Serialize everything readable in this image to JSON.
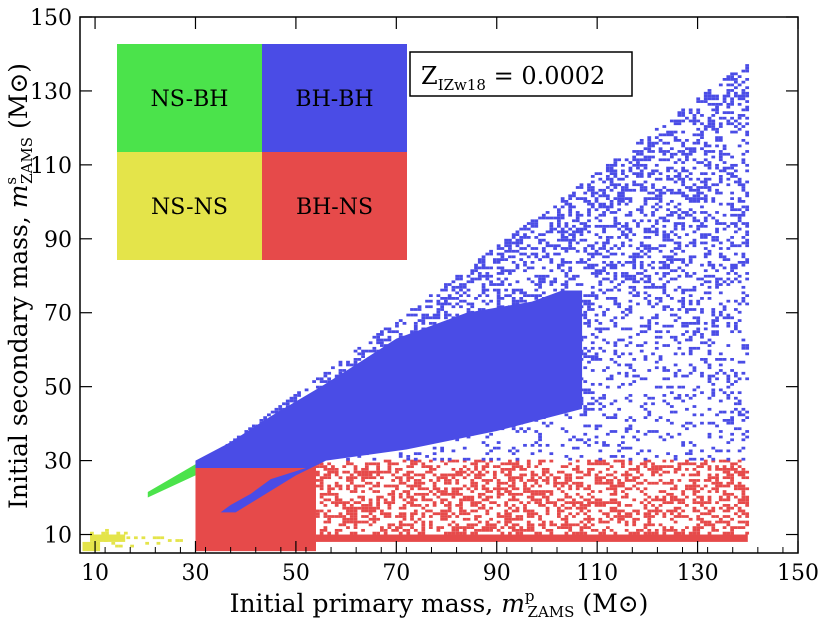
{
  "chart_data": {
    "type": "heatmap",
    "xlabel": "Initial primary mass, m",
    "xlabel_sup": "p",
    "xlabel_sub": "ZAMS",
    "xlabel_unit": " (M⊙)",
    "ylabel": "Initial secondary mass, m",
    "ylabel_sup": "s",
    "ylabel_sub": "ZAMS",
    "ylabel_unit": " (M⊙)",
    "xlim": [
      7,
      150
    ],
    "ylim": [
      5,
      150
    ],
    "xticks": [
      10,
      30,
      50,
      70,
      90,
      110,
      130,
      150
    ],
    "yticks": [
      10,
      30,
      50,
      70,
      90,
      110,
      130,
      150
    ],
    "annotation": {
      "prefix": "Z",
      "sub": "IZw18",
      "suffix": " = 0.0002"
    },
    "legend": [
      {
        "label": "NS-BH",
        "color": "#4be34b"
      },
      {
        "label": "BH-BH",
        "color": "#4a4ce6"
      },
      {
        "label": "NS-NS",
        "color": "#e4e44a"
      },
      {
        "label": "BH-NS",
        "color": "#e64a4a"
      }
    ],
    "series": [
      {
        "name": "NS-NS",
        "color": "#e4e44a",
        "solid_regions": [
          {
            "x": [
              7.5,
              11
            ],
            "y": [
              5.5,
              8
            ]
          },
          {
            "x": [
              9,
              16
            ],
            "y": [
              8,
              10
            ]
          }
        ],
        "scatter_regions": [
          {
            "x": [
              11,
              29
            ],
            "y": [
              6.5,
              9.5
            ],
            "density": 0.25
          },
          {
            "x": [
              9,
              16
            ],
            "y": [
              10,
              11.5
            ],
            "density": 0.3
          }
        ]
      },
      {
        "name": "NS-BH",
        "color": "#4be34b",
        "band": {
          "x": [
            20.5,
            30
          ],
          "y_at_x_start": [
            20,
            21.5
          ],
          "y_at_x_end": [
            26,
            29
          ]
        }
      },
      {
        "name": "BH-NS",
        "color": "#e64a4a",
        "solid_regions": [
          {
            "x": [
              30,
              54
            ],
            "y": [
              5.5,
              30
            ]
          },
          {
            "x": [
              54,
              140
            ],
            "y": [
              8,
              10
            ]
          }
        ],
        "scatter_regions": [
          {
            "x": [
              54,
              140
            ],
            "y": [
              10,
              30
            ],
            "density": 0.45
          }
        ]
      },
      {
        "name": "BH-BH",
        "color": "#4a4ce6",
        "solid_polygon": [
          [
            30,
            28
          ],
          [
            30,
            30
          ],
          [
            37,
            35
          ],
          [
            45,
            42
          ],
          [
            55,
            50
          ],
          [
            62,
            56
          ],
          [
            70,
            63
          ],
          [
            84,
            70
          ],
          [
            97,
            73
          ],
          [
            103,
            76
          ],
          [
            107,
            76
          ],
          [
            107,
            44
          ],
          [
            90,
            38
          ],
          [
            72,
            33
          ],
          [
            56,
            30
          ],
          [
            50,
            26
          ],
          [
            44,
            21
          ],
          [
            38,
            16
          ],
          [
            35,
            16
          ],
          [
            37,
            18
          ],
          [
            41,
            21
          ],
          [
            45,
            25
          ],
          [
            52,
            28
          ],
          [
            30,
            28
          ]
        ],
        "scatter_regions": [
          {
            "x": [
              30,
              140
            ],
            "y_lower": 30,
            "y_upper": "x",
            "density": 0.35
          }
        ]
      }
    ]
  }
}
